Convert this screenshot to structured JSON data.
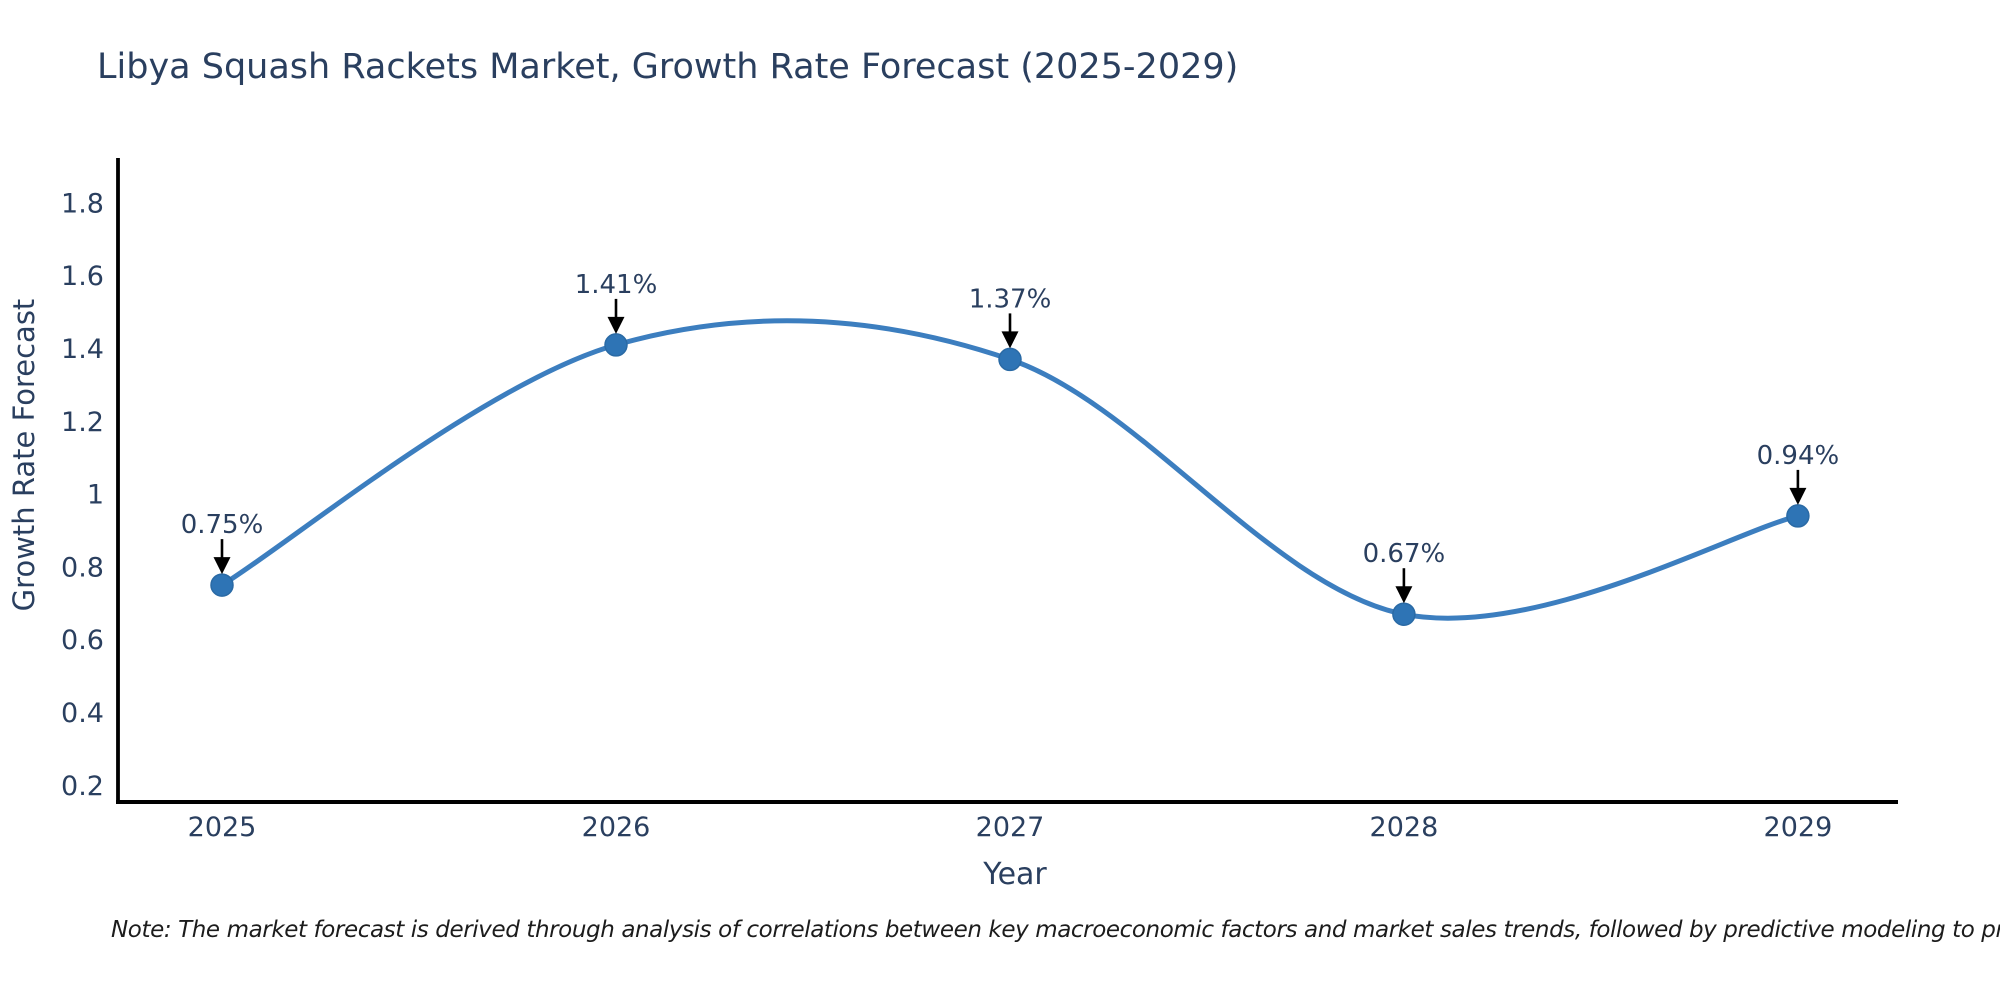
{
  "title": "Libya Squash Rackets Market, Growth Rate Forecast (2025-2029)",
  "note": "Note: The market forecast is derived through analysis of correlations between key macroeconomic factors and market sales trends, followed by predictive modeling to project future sales",
  "chart_data": {
    "type": "line",
    "title": "Libya Squash Rackets Market, Growth Rate Forecast (2025-2029)",
    "xlabel": "Year",
    "ylabel": "Growth Rate Forecast",
    "x": [
      2025,
      2026,
      2027,
      2028,
      2029
    ],
    "values": [
      0.75,
      1.41,
      1.37,
      0.67,
      0.94
    ],
    "point_labels": [
      "0.75%",
      "1.41%",
      "1.37%",
      "0.67%",
      "0.94%"
    ],
    "xtick_labels": [
      "2025",
      "2026",
      "2027",
      "2028",
      "2029"
    ],
    "yticks": [
      0.2,
      0.4,
      0.6,
      0.8,
      1,
      1.2,
      1.4,
      1.6,
      1.8
    ],
    "ytick_labels": [
      "0.2",
      "0.4",
      "0.6",
      "0.8",
      "1",
      "1.2",
      "1.4",
      "1.6",
      "1.8"
    ],
    "xlim": [
      2024.731,
      2029.254
    ],
    "ylim": [
      0.154,
      1.918
    ],
    "grid": false,
    "legend_position": "none",
    "line_interpolation": "smooth-spline",
    "annotation_arrows": true,
    "colors": {
      "line": "#3c7ebf",
      "marker_fill": "#2e74b5",
      "marker_edge": "#2a6aa5",
      "axis_line": "#000000",
      "text": "#2a3f5f",
      "arrow": "#000000",
      "note_text": "#1c1c1c"
    }
  }
}
